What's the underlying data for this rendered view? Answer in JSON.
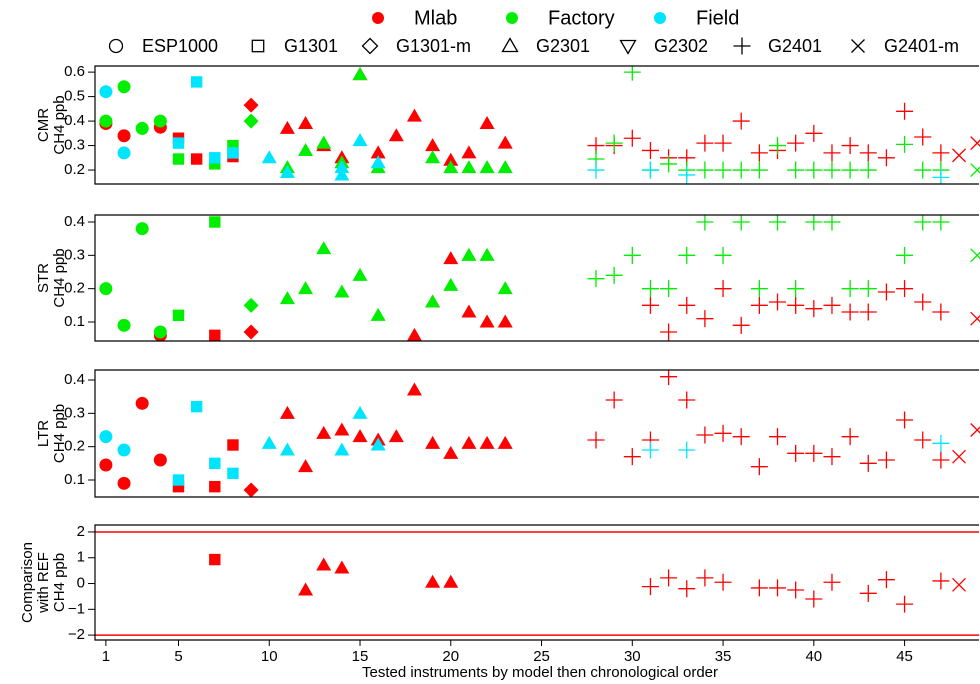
{
  "legend": {
    "series": [
      {
        "name": "Mlab",
        "color": "#ff0000"
      },
      {
        "name": "Factory",
        "color": "#00ee00"
      },
      {
        "name": "Field",
        "color": "#00e5ff"
      }
    ],
    "markers": [
      {
        "name": "ESP1000",
        "marker": "circle"
      },
      {
        "name": "G1301",
        "marker": "square"
      },
      {
        "name": "G1301-m",
        "marker": "diamond"
      },
      {
        "name": "G2301",
        "marker": "triangle-up"
      },
      {
        "name": "G2302",
        "marker": "triangle-down"
      },
      {
        "name": "G2401",
        "marker": "plus"
      },
      {
        "name": "G2401-m",
        "marker": "cross"
      }
    ]
  },
  "chart_data": [
    {
      "type": "scatter",
      "ylabel": [
        "CMR",
        "CH4 ppb"
      ],
      "xlim": [
        0.4,
        49.1
      ],
      "ylim": [
        0.143,
        0.625
      ],
      "yticks": [
        0.2,
        0.3,
        0.4,
        0.5,
        0.6
      ],
      "series": [
        {
          "name": "Mlab",
          "x": [
            1,
            2,
            4,
            5,
            6,
            8,
            9,
            11,
            12,
            13,
            14,
            15,
            16,
            17,
            18,
            19,
            20,
            21,
            22,
            23,
            28,
            29,
            30,
            31,
            32,
            33,
            34,
            35,
            36,
            37,
            38,
            39,
            40,
            41,
            42,
            43,
            44,
            45,
            46,
            47,
            48,
            49
          ],
          "values": [
            0.39,
            0.34,
            0.375,
            0.33,
            0.245,
            0.255,
            0.465,
            0.37,
            0.39,
            0.3,
            0.25,
            0.59,
            0.27,
            0.34,
            0.42,
            0.3,
            0.24,
            0.27,
            0.39,
            0.31,
            0.3,
            0.3,
            0.33,
            0.28,
            0.25,
            0.25,
            0.31,
            0.31,
            0.4,
            0.27,
            0.28,
            0.31,
            0.35,
            0.27,
            0.3,
            0.27,
            0.25,
            0.44,
            0.335,
            0.27,
            0.26,
            0.31
          ],
          "model": [
            "ESP1000",
            "ESP1000",
            "ESP1000",
            "G1301",
            "G1301",
            "G1301",
            "G1301-m",
            "G2301",
            "G2301",
            "G2301",
            "G2301",
            "G2301",
            "G2301",
            "G2301",
            "G2301",
            "G2301",
            "G2301",
            "G2301",
            "G2301",
            "G2301",
            "G2401",
            "G2401",
            "G2401",
            "G2401",
            "G2401",
            "G2401",
            "G2401",
            "G2401",
            "G2401",
            "G2401",
            "G2401",
            "G2401",
            "G2401",
            "G2401",
            "G2401",
            "G2401",
            "G2401",
            "G2401",
            "G2401",
            "G2401",
            "G2401-m",
            "G2401-m"
          ]
        },
        {
          "name": "Factory",
          "x": [
            1,
            2,
            3,
            4,
            5,
            7,
            8,
            9,
            11,
            12,
            13,
            14,
            15,
            16,
            19,
            20,
            21,
            22,
            23,
            28,
            29,
            30,
            31,
            32,
            33,
            34,
            35,
            36,
            37,
            38,
            39,
            40,
            41,
            42,
            43,
            45,
            46,
            47,
            49
          ],
          "values": [
            0.4,
            0.54,
            0.37,
            0.4,
            0.245,
            0.225,
            0.3,
            0.4,
            0.21,
            0.28,
            0.31,
            0.23,
            0.59,
            0.21,
            0.25,
            0.21,
            0.21,
            0.21,
            0.21,
            0.245,
            0.31,
            0.6,
            0.2,
            0.225,
            0.2,
            0.2,
            0.2,
            0.2,
            0.2,
            0.3,
            0.2,
            0.2,
            0.2,
            0.2,
            0.2,
            0.305,
            0.2,
            0.2,
            0.2
          ],
          "model": [
            "ESP1000",
            "ESP1000",
            "ESP1000",
            "ESP1000",
            "G1301",
            "G1301",
            "G1301",
            "G1301-m",
            "G2301",
            "G2301",
            "G2301",
            "G2301",
            "G2301",
            "G2301",
            "G2301",
            "G2301",
            "G2301",
            "G2301",
            "G2301",
            "G2401",
            "G2401",
            "G2401",
            "G2401",
            "G2401",
            "G2401",
            "G2401",
            "G2401",
            "G2401",
            "G2401",
            "G2401",
            "G2401",
            "G2401",
            "G2401",
            "G2401",
            "G2401",
            "G2401",
            "G2401",
            "G2401",
            "G2401-m"
          ]
        },
        {
          "name": "Field",
          "x": [
            1,
            2,
            5,
            6,
            7,
            8,
            10,
            11,
            14,
            14,
            15,
            16,
            28,
            31,
            33,
            47
          ],
          "values": [
            0.52,
            0.27,
            0.31,
            0.56,
            0.25,
            0.27,
            0.25,
            0.19,
            0.18,
            0.21,
            0.32,
            0.23,
            0.2,
            0.2,
            0.18,
            0.17
          ],
          "model": [
            "ESP1000",
            "ESP1000",
            "G1301",
            "G1301",
            "G1301",
            "G1301",
            "G2301",
            "G2301",
            "G2301",
            "G2301",
            "G2301",
            "G2301",
            "G2401",
            "G2401",
            "G2401",
            "G2401"
          ]
        }
      ]
    },
    {
      "type": "scatter",
      "ylabel": [
        "STR",
        "CH4 ppb"
      ],
      "xlim": [
        0.4,
        49.1
      ],
      "ylim": [
        0.043,
        0.421
      ],
      "yticks": [
        0.1,
        0.2,
        0.3,
        0.4
      ],
      "series": [
        {
          "name": "Mlab",
          "x": [
            4,
            7,
            9,
            18,
            19,
            20,
            21,
            22,
            23,
            31,
            32,
            33,
            34,
            35,
            36,
            37,
            38,
            39,
            40,
            41,
            42,
            43,
            44,
            45,
            46,
            47,
            49
          ],
          "values": [
            0.06,
            0.06,
            0.07,
            0.06,
            0.16,
            0.29,
            0.13,
            0.1,
            0.1,
            0.15,
            0.07,
            0.15,
            0.11,
            0.2,
            0.09,
            0.15,
            0.16,
            0.15,
            0.14,
            0.15,
            0.13,
            0.13,
            0.19,
            0.2,
            0.16,
            0.13,
            0.11
          ],
          "model": [
            "ESP1000",
            "G1301",
            "G1301-m",
            "G2301",
            "G2301",
            "G2301",
            "G2301",
            "G2301",
            "G2301",
            "G2401",
            "G2401",
            "G2401",
            "G2401",
            "G2401",
            "G2401",
            "G2401",
            "G2401",
            "G2401",
            "G2401",
            "G2401",
            "G2401",
            "G2401",
            "G2401",
            "G2401",
            "G2401",
            "G2401",
            "G2401-m"
          ]
        },
        {
          "name": "Factory",
          "x": [
            1,
            2,
            3,
            4,
            5,
            7,
            9,
            11,
            12,
            13,
            14,
            15,
            16,
            19,
            20,
            21,
            22,
            23,
            28,
            29,
            30,
            31,
            32,
            33,
            34,
            35,
            36,
            37,
            38,
            39,
            40,
            41,
            42,
            43,
            45,
            46,
            47,
            49
          ],
          "values": [
            0.2,
            0.09,
            0.38,
            0.07,
            0.12,
            0.4,
            0.15,
            0.17,
            0.2,
            0.32,
            0.19,
            0.24,
            0.12,
            0.16,
            0.21,
            0.3,
            0.3,
            0.2,
            0.23,
            0.24,
            0.3,
            0.2,
            0.2,
            0.3,
            0.4,
            0.3,
            0.4,
            0.2,
            0.4,
            0.2,
            0.4,
            0.4,
            0.2,
            0.2,
            0.3,
            0.4,
            0.4,
            0.3
          ],
          "model": [
            "ESP1000",
            "ESP1000",
            "ESP1000",
            "ESP1000",
            "G1301",
            "G1301",
            "G1301-m",
            "G2301",
            "G2301",
            "G2301",
            "G2301",
            "G2301",
            "G2301",
            "G2301",
            "G2301",
            "G2301",
            "G2301",
            "G2301",
            "G2401",
            "G2401",
            "G2401",
            "G2401",
            "G2401",
            "G2401",
            "G2401",
            "G2401",
            "G2401",
            "G2401",
            "G2401",
            "G2401",
            "G2401",
            "G2401",
            "G2401",
            "G2401",
            "G2401",
            "G2401",
            "G2401",
            "G2401-m"
          ]
        }
      ]
    },
    {
      "type": "scatter",
      "ylabel": [
        "LTR",
        "CH4 ppb"
      ],
      "xlim": [
        0.4,
        49.1
      ],
      "ylim": [
        0.049,
        0.43
      ],
      "yticks": [
        0.1,
        0.2,
        0.3,
        0.4
      ],
      "series": [
        {
          "name": "Mlab",
          "x": [
            1,
            2,
            3,
            4,
            5,
            7,
            8,
            9,
            11,
            12,
            13,
            14,
            15,
            16,
            17,
            18,
            19,
            20,
            21,
            22,
            23,
            28,
            29,
            30,
            31,
            32,
            33,
            34,
            35,
            36,
            37,
            38,
            39,
            40,
            41,
            42,
            43,
            44,
            45,
            46,
            47,
            48,
            49
          ],
          "values": [
            0.145,
            0.09,
            0.33,
            0.16,
            0.08,
            0.08,
            0.205,
            0.07,
            0.3,
            0.14,
            0.24,
            0.25,
            0.23,
            0.22,
            0.23,
            0.37,
            0.21,
            0.18,
            0.21,
            0.21,
            0.21,
            0.22,
            0.34,
            0.17,
            0.22,
            0.41,
            0.34,
            0.235,
            0.24,
            0.23,
            0.14,
            0.23,
            0.18,
            0.18,
            0.17,
            0.23,
            0.15,
            0.16,
            0.28,
            0.22,
            0.16,
            0.17,
            0.25
          ],
          "model": [
            "ESP1000",
            "ESP1000",
            "ESP1000",
            "ESP1000",
            "G1301",
            "G1301",
            "G1301",
            "G1301-m",
            "G2301",
            "G2301",
            "G2301",
            "G2301",
            "G2301",
            "G2301",
            "G2301",
            "G2301",
            "G2301",
            "G2301",
            "G2301",
            "G2301",
            "G2301",
            "G2401",
            "G2401",
            "G2401",
            "G2401",
            "G2401",
            "G2401",
            "G2401",
            "G2401",
            "G2401",
            "G2401",
            "G2401",
            "G2401",
            "G2401",
            "G2401",
            "G2401",
            "G2401",
            "G2401",
            "G2401",
            "G2401",
            "G2401",
            "G2401-m",
            "G2401-m"
          ]
        },
        {
          "name": "Field",
          "x": [
            1,
            2,
            5,
            6,
            7,
            8,
            10,
            11,
            14,
            15,
            16,
            31,
            33,
            47
          ],
          "values": [
            0.23,
            0.19,
            0.1,
            0.32,
            0.15,
            0.12,
            0.21,
            0.19,
            0.19,
            0.3,
            0.205,
            0.19,
            0.19,
            0.21
          ],
          "model": [
            "ESP1000",
            "ESP1000",
            "G1301",
            "G1301",
            "G1301",
            "G1301",
            "G2301",
            "G2301",
            "G2301",
            "G2301",
            "G2301",
            "G2401",
            "G2401",
            "G2401"
          ]
        }
      ]
    },
    {
      "type": "scatter",
      "ylabel": [
        "Comparison",
        "with REF",
        "CH4 ppb"
      ],
      "xlabel": "Tested instruments by model then chronological order",
      "xlim": [
        0.4,
        49.1
      ],
      "xticks": [
        1,
        5,
        10,
        15,
        20,
        25,
        30,
        35,
        40,
        45
      ],
      "ylim": [
        -2.19,
        2.27
      ],
      "yticks": [
        2,
        1,
        0,
        {
          "value": -1,
          "label": "−1"
        },
        {
          "value": -2,
          "label": "−2"
        }
      ],
      "hlines": [
        2,
        -2
      ],
      "hline_color": "#ff0000",
      "series": [
        {
          "name": "Mlab",
          "x": [
            7,
            12,
            13,
            14,
            19,
            20,
            31,
            32,
            33,
            34,
            35,
            37,
            38,
            39,
            40,
            41,
            43,
            44,
            45,
            47,
            48
          ],
          "values": [
            0.93,
            -0.25,
            0.72,
            0.6,
            0.05,
            0.05,
            -0.12,
            0.22,
            -0.2,
            0.22,
            0.05,
            -0.17,
            -0.17,
            -0.25,
            -0.6,
            0.05,
            -0.38,
            0.15,
            -0.8,
            0.1,
            -0.05
          ],
          "model": [
            "G1301",
            "G2301",
            "G2301",
            "G2301",
            "G2301",
            "G2301",
            "G2401",
            "G2401",
            "G2401",
            "G2401",
            "G2401",
            "G2401",
            "G2401",
            "G2401",
            "G2401",
            "G2401",
            "G2401",
            "G2401",
            "G2401",
            "G2401",
            "G2401-m"
          ]
        }
      ]
    }
  ]
}
